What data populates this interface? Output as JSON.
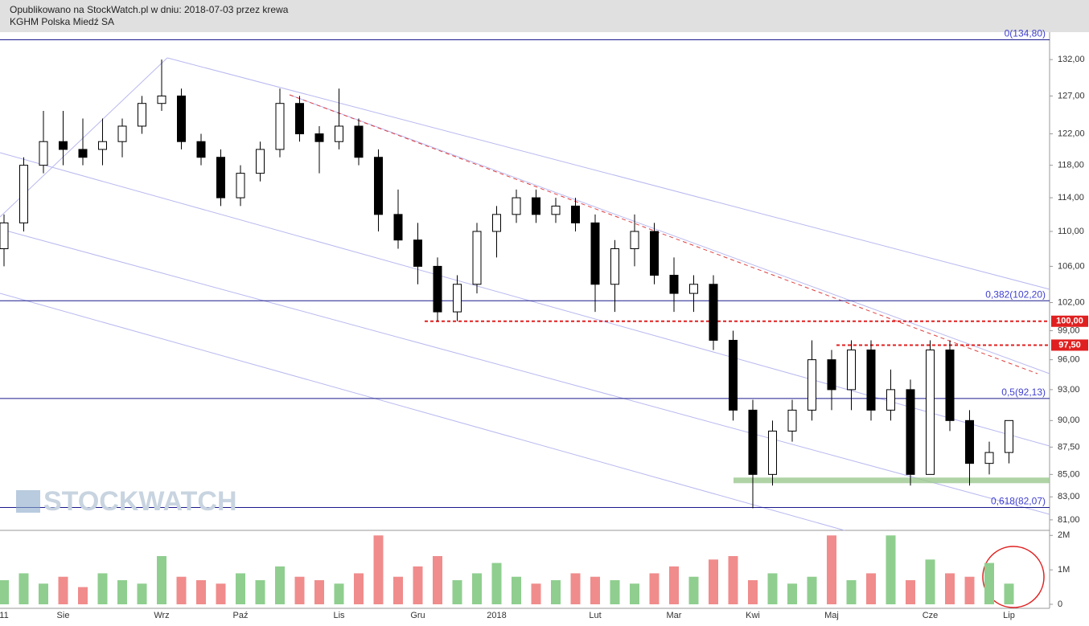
{
  "header": {
    "line1": "Opublikowano na StockWatch.pl w dniu: 2018-07-03 przez krewa",
    "line2": "KGHM Polska Miedź SA"
  },
  "watermark": "STOCKWATCH",
  "chart_data": {
    "type": "candlestick",
    "log_scale": true,
    "categories": [
      "11",
      null,
      null,
      "Sie",
      null,
      null,
      null,
      null,
      "Wrz",
      null,
      null,
      null,
      "Paź",
      null,
      null,
      null,
      null,
      "Lis",
      null,
      null,
      null,
      "Gru",
      null,
      null,
      null,
      "2018",
      null,
      null,
      null,
      null,
      "Lut",
      null,
      null,
      null,
      "Mar",
      null,
      null,
      null,
      "Kwi",
      null,
      null,
      null,
      "Maj",
      null,
      null,
      null,
      null,
      "Cze",
      null,
      null,
      null,
      "Lip"
    ],
    "open": [
      108,
      111,
      118,
      121,
      120,
      120,
      121,
      123,
      126,
      127,
      121,
      119,
      114,
      117,
      120,
      126,
      122,
      121,
      123,
      119,
      112,
      109,
      106,
      101,
      104,
      110,
      112,
      114,
      112,
      113,
      111,
      104,
      108,
      110,
      105,
      103,
      104,
      98,
      91,
      85,
      89,
      91,
      96,
      93,
      97,
      91,
      93,
      85,
      97,
      90,
      86,
      87
    ],
    "high": [
      112,
      119,
      125,
      125,
      124,
      124,
      124,
      127,
      132,
      128,
      122,
      120,
      118,
      121,
      128,
      127,
      123,
      128,
      124,
      120,
      115,
      111,
      107,
      105,
      111,
      113,
      115,
      115,
      114,
      114,
      112,
      109,
      112,
      111,
      107,
      105,
      105,
      99,
      92,
      90,
      92,
      98,
      97,
      98,
      98,
      95,
      94,
      98,
      98,
      91,
      88,
      90
    ],
    "low": [
      106,
      110,
      117,
      118,
      118,
      118,
      119,
      122,
      125,
      120,
      118,
      113,
      113,
      116,
      119,
      121,
      117,
      120,
      118,
      110,
      108,
      104,
      100,
      100,
      103,
      107,
      111,
      111,
      111,
      110,
      101,
      101,
      106,
      104,
      101,
      101,
      97,
      90,
      82,
      84,
      88,
      90,
      91,
      91,
      90,
      90,
      84,
      85,
      89,
      84,
      85,
      86
    ],
    "close": [
      111,
      118,
      121,
      120,
      119,
      121,
      123,
      126,
      127,
      121,
      119,
      114,
      117,
      120,
      126,
      122,
      121,
      123,
      119,
      112,
      109,
      106,
      101,
      104,
      110,
      112,
      114,
      112,
      113,
      111,
      104,
      108,
      110,
      105,
      103,
      104,
      98,
      91,
      85,
      89,
      91,
      96,
      93,
      97,
      91,
      93,
      85,
      97,
      90,
      86,
      87,
      90
    ],
    "volume": [
      700000,
      900000,
      600000,
      800000,
      500000,
      900000,
      700000,
      600000,
      1400000,
      800000,
      700000,
      600000,
      900000,
      700000,
      1100000,
      800000,
      700000,
      600000,
      900000,
      2000000,
      800000,
      1100000,
      1400000,
      700000,
      900000,
      1200000,
      800000,
      600000,
      700000,
      900000,
      800000,
      700000,
      600000,
      900000,
      1100000,
      800000,
      1300000,
      1400000,
      700000,
      900000,
      600000,
      800000,
      2000000,
      700000,
      900000,
      2000000,
      700000,
      1300000,
      900000,
      800000,
      1200000,
      600000
    ],
    "up_color": "#ffffff",
    "down_color": "#000000",
    "volume_up_color": "#8fce8f",
    "volume_down_color": "#f08c8c",
    "ylim": [
      80.1,
      135.9
    ],
    "yticks": [
      {
        "value": 81,
        "label": "81,00"
      },
      {
        "value": 83,
        "label": "83,00"
      },
      {
        "value": 85,
        "label": "85,00"
      },
      {
        "value": 87.5,
        "label": "87,50"
      },
      {
        "value": 90,
        "label": "90,00"
      },
      {
        "value": 93,
        "label": "93,00"
      },
      {
        "value": 96,
        "label": "96,00"
      },
      {
        "value": 99,
        "label": "99,00"
      },
      {
        "value": 102,
        "label": "102,00"
      },
      {
        "value": 106,
        "label": "106,00"
      },
      {
        "value": 110,
        "label": "110,00"
      },
      {
        "value": 114,
        "label": "114,00"
      },
      {
        "value": 118,
        "label": "118,00"
      },
      {
        "value": 122,
        "label": "122,00"
      },
      {
        "value": 127,
        "label": "127,00"
      },
      {
        "value": 132,
        "label": "132,00"
      }
    ],
    "vlim": [
      0,
      2100000
    ],
    "vticks": [
      0,
      {
        "value": 1000000,
        "label": "1M"
      },
      {
        "value": 2000000,
        "label": "2M"
      }
    ],
    "fib_levels": [
      {
        "value": 134.8,
        "label": "0(134,80)"
      },
      {
        "value": 102.2,
        "label": "0,382(102,20)"
      },
      {
        "value": 92.13,
        "label": "0,5(92,13)"
      },
      {
        "value": 82.07,
        "label": "0,618(82,07)"
      }
    ],
    "red_levels": [
      {
        "value": 100,
        "label": "100,00"
      },
      {
        "value": 97.5,
        "label": "97,50"
      }
    ],
    "support_level": 84.5
  }
}
